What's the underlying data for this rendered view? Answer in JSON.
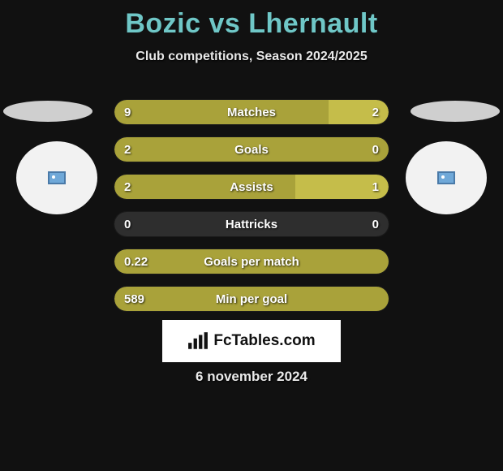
{
  "title": {
    "p1": "Bozic",
    "vs": "vs",
    "p2": "Lhernault"
  },
  "subtitle": "Club competitions, Season 2024/2025",
  "colors": {
    "p1_bar": "#a9a23a",
    "p2_bar": "#a9a23a",
    "bar_highlight": "#c5bd4a",
    "neutral_bar": "#2e2e2e",
    "nub_left": "#cfcfcf",
    "nub_right": "#cfcfcf",
    "avatar_bg": "#f2f2f2"
  },
  "stats": [
    {
      "label": "Matches",
      "left_val": "9",
      "right_val": "2",
      "left_pct": 78,
      "right_pct": 22,
      "left_color": "#a9a23a",
      "right_color": "#c5bd4a"
    },
    {
      "label": "Goals",
      "left_val": "2",
      "right_val": "0",
      "left_pct": 100,
      "right_pct": 0,
      "left_color": "#a9a23a",
      "right_color": "#2e2e2e"
    },
    {
      "label": "Assists",
      "left_val": "2",
      "right_val": "1",
      "left_pct": 66,
      "right_pct": 34,
      "left_color": "#a9a23a",
      "right_color": "#c5bd4a"
    },
    {
      "label": "Hattricks",
      "left_val": "0",
      "right_val": "0",
      "left_pct": 50,
      "right_pct": 50,
      "left_color": "#2e2e2e",
      "right_color": "#2e2e2e"
    },
    {
      "label": "Goals per match",
      "left_val": "0.22",
      "right_val": "",
      "left_pct": 100,
      "right_pct": 0,
      "left_color": "#a9a23a",
      "right_color": "#2e2e2e"
    },
    {
      "label": "Min per goal",
      "left_val": "589",
      "right_val": "",
      "left_pct": 100,
      "right_pct": 0,
      "left_color": "#a9a23a",
      "right_color": "#2e2e2e"
    }
  ],
  "brand": "FcTables.com",
  "date": "6 november 2024"
}
